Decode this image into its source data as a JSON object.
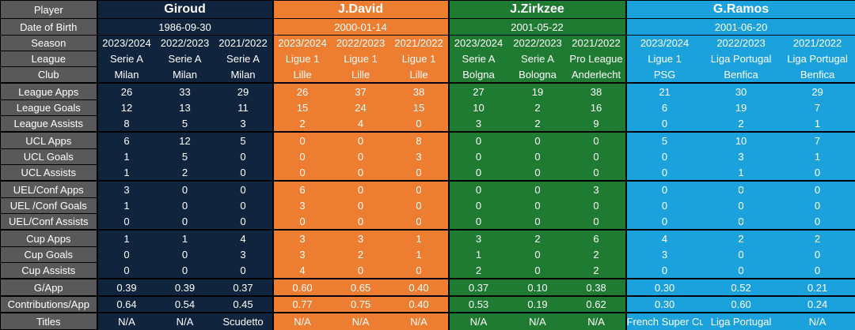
{
  "table": {
    "player_label": "Player",
    "dob_label": "Date of Birth",
    "players": [
      {
        "name": "Giroud",
        "dob": "1986-09-30"
      },
      {
        "name": "J.David",
        "dob": "2000-01-14"
      },
      {
        "name": "J.Zirkzee",
        "dob": "2001-05-22"
      },
      {
        "name": "G.Ramos",
        "dob": "2001-06-20"
      }
    ],
    "rows": [
      {
        "label": "Season",
        "cells": [
          "2023/2024",
          "2022/2023",
          "2021/2022",
          "2023/2024",
          "2022/2023",
          "2021/2022",
          "2023/2024",
          "2022/2023",
          "2021/2022",
          "2023/2024",
          "2022/2023",
          "2021/2022"
        ]
      },
      {
        "label": "League",
        "cells": [
          "Serie A",
          "Serie A",
          "Serie A",
          "Ligue 1",
          "Ligue 1",
          "Ligue 1",
          "Serie A",
          "Serie A",
          "Pro League",
          "Ligue 1",
          "Liga Portugal",
          "Liga Portugal"
        ]
      },
      {
        "label": "Club",
        "cells": [
          "Milan",
          "Milan",
          "Milan",
          "Lille",
          "Lille",
          "Lille",
          "Bolgna",
          "Bologna",
          "Anderlecht",
          "PSG",
          "Benfica",
          "Benfica"
        ]
      },
      {
        "label": "League Apps",
        "cells": [
          "26",
          "33",
          "29",
          "26",
          "37",
          "38",
          "27",
          "19",
          "38",
          "21",
          "30",
          "29"
        ]
      },
      {
        "label": "League Goals",
        "cells": [
          "12",
          "13",
          "11",
          "15",
          "24",
          "15",
          "10",
          "2",
          "16",
          "6",
          "19",
          "7"
        ]
      },
      {
        "label": "League Assists",
        "cells": [
          "8",
          "5",
          "3",
          "2",
          "4",
          "0",
          "3",
          "2",
          "9",
          "0",
          "2",
          "1"
        ]
      },
      {
        "label": "UCL Apps",
        "cells": [
          "6",
          "12",
          "5",
          "0",
          "0",
          "8",
          "0",
          "0",
          "0",
          "5",
          "10",
          "7"
        ]
      },
      {
        "label": "UCL Goals",
        "cells": [
          "1",
          "5",
          "0",
          "0",
          "0",
          "3",
          "0",
          "0",
          "0",
          "0",
          "3",
          "1"
        ]
      },
      {
        "label": "UCL Assists",
        "cells": [
          "1",
          "2",
          "0",
          "0",
          "0",
          "0",
          "0",
          "0",
          "0",
          "0",
          "1",
          "0"
        ]
      },
      {
        "label": "UEL/Conf Apps",
        "cells": [
          "3",
          "0",
          "0",
          "6",
          "0",
          "0",
          "0",
          "0",
          "3",
          "0",
          "0",
          "0"
        ]
      },
      {
        "label": "UEL /Conf Goals",
        "cells": [
          "1",
          "0",
          "0",
          "3",
          "0",
          "0",
          "0",
          "0",
          "0",
          "0",
          "0",
          "0"
        ]
      },
      {
        "label": "UEL/Conf Assists",
        "cells": [
          "0",
          "0",
          "0",
          "0",
          "0",
          "0",
          "0",
          "0",
          "0",
          "0",
          "0",
          "0"
        ]
      },
      {
        "label": "Cup Apps",
        "cells": [
          "1",
          "1",
          "4",
          "3",
          "3",
          "1",
          "3",
          "2",
          "6",
          "4",
          "2",
          "2"
        ]
      },
      {
        "label": "Cup Goals",
        "cells": [
          "0",
          "0",
          "3",
          "3",
          "2",
          "1",
          "1",
          "0",
          "2",
          "3",
          "0",
          "0"
        ]
      },
      {
        "label": "Cup Assists",
        "cells": [
          "0",
          "0",
          "0",
          "4",
          "0",
          "0",
          "2",
          "0",
          "2",
          "0",
          "0",
          "0"
        ]
      },
      {
        "label": "G/App",
        "cells": [
          "0.39",
          "0.39",
          "0.37",
          "0.60",
          "0.65",
          "0.40",
          "0.37",
          "0.10",
          "0.38",
          "0.30",
          "0.52",
          "0.21"
        ]
      },
      {
        "label": "Contributions/App",
        "cells": [
          "0.64",
          "0.54",
          "0.45",
          "0.77",
          "0.75",
          "0.40",
          "0.53",
          "0.19",
          "0.62",
          "0.30",
          "0.60",
          "0.24"
        ]
      },
      {
        "label": "Titles",
        "cells": [
          "N/A",
          "N/A",
          "Scudetto",
          "N/A",
          "N/A",
          "N/A",
          "N/A",
          "N/A",
          "N/A",
          "French Super Cup",
          "Liga Portugal",
          "N/A"
        ]
      }
    ]
  }
}
